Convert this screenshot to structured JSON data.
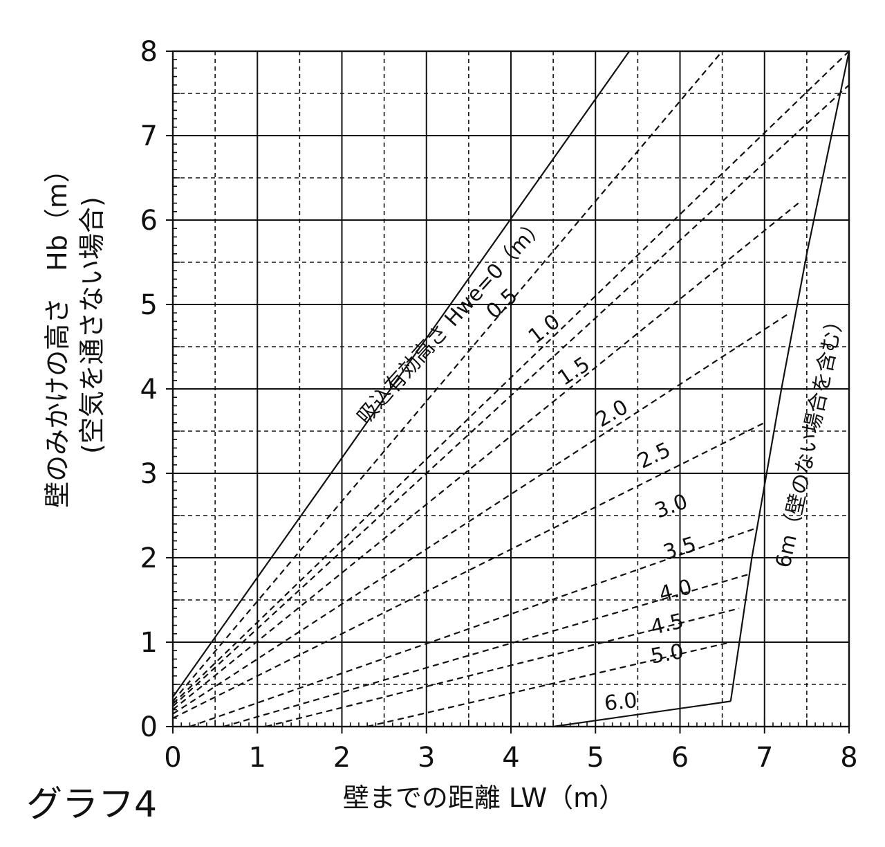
{
  "chart_data": {
    "type": "line",
    "xlabel": "壁までの距離 LW（m）",
    "ylabel": "壁のみかけの高さ　Hb（m）",
    "ylabel_sub": "(空気を通さない場合)",
    "graph_name": "グラフ4",
    "xlim": [
      0,
      8
    ],
    "ylim": [
      0,
      8
    ],
    "x_ticks": [
      "0",
      "1",
      "2",
      "3",
      "4",
      "5",
      "6",
      "7",
      "8"
    ],
    "y_ticks": [
      "0",
      "1",
      "2",
      "3",
      "4",
      "5",
      "6",
      "7",
      "8"
    ],
    "grid": "major solid every 1, minor dashed every 0.5",
    "series": [
      {
        "name": "吸込有効高さ Hwe=0（m）",
        "style": "solid",
        "points": [
          [
            0,
            0.35
          ],
          [
            5.4,
            8.0
          ]
        ]
      },
      {
        "name": "0.5",
        "style": "dashed",
        "points": [
          [
            0,
            0.3
          ],
          [
            6.5,
            8.0
          ]
        ]
      },
      {
        "name": "1.0",
        "style": "dashed",
        "points": [
          [
            0,
            0.27
          ],
          [
            8.0,
            8.0
          ]
        ]
      },
      {
        "name": "1.5",
        "style": "dashed",
        "points": [
          [
            0,
            0.24
          ],
          [
            8.0,
            7.6
          ]
        ]
      },
      {
        "name": "2.0",
        "style": "dashed",
        "points": [
          [
            0,
            0.2
          ],
          [
            7.4,
            6.2
          ]
        ]
      },
      {
        "name": "2.5",
        "style": "dashed",
        "points": [
          [
            0,
            0.15
          ],
          [
            7.3,
            4.9
          ]
        ]
      },
      {
        "name": "3.0",
        "style": "dashed",
        "points": [
          [
            0,
            0.1
          ],
          [
            7.0,
            3.6
          ]
        ]
      },
      {
        "name": "3.5",
        "style": "dashed",
        "points": [
          [
            0.2,
            0.0
          ],
          [
            6.9,
            2.35
          ]
        ]
      },
      {
        "name": "4.0",
        "style": "dashed",
        "points": [
          [
            0.6,
            0.0
          ],
          [
            6.8,
            1.8
          ]
        ]
      },
      {
        "name": "4.5",
        "style": "dashed",
        "points": [
          [
            1.1,
            0.0
          ],
          [
            6.7,
            1.4
          ]
        ]
      },
      {
        "name": "5.0",
        "style": "dashed",
        "points": [
          [
            2.3,
            0.0
          ],
          [
            6.6,
            1.0
          ]
        ]
      },
      {
        "name": "6.0",
        "style": "solid",
        "points": [
          [
            4.5,
            0.0
          ],
          [
            6.6,
            0.3
          ]
        ]
      },
      {
        "name": "6m（壁のない場合を含む）",
        "style": "solid",
        "points": [
          [
            6.6,
            0.3
          ],
          [
            6.85,
            2.0
          ],
          [
            7.2,
            4.0
          ],
          [
            7.5,
            5.6
          ],
          [
            8.0,
            8.0
          ]
        ]
      }
    ],
    "labels": [
      {
        "text": "吸込有効高さ Hwe=0（m）",
        "x": 3.3,
        "y": 4.8,
        "angle": -48
      },
      {
        "text": "0.5",
        "x": 3.9,
        "y": 5.0,
        "angle": -42
      },
      {
        "text": "1.0",
        "x": 4.4,
        "y": 4.7,
        "angle": -38
      },
      {
        "text": "1.5",
        "x": 4.75,
        "y": 4.2,
        "angle": -34
      },
      {
        "text": "2.0",
        "x": 5.2,
        "y": 3.7,
        "angle": -30
      },
      {
        "text": "2.5",
        "x": 5.7,
        "y": 3.2,
        "angle": -25
      },
      {
        "text": "3.0",
        "x": 5.9,
        "y": 2.6,
        "angle": -20
      },
      {
        "text": "3.5",
        "x": 6.0,
        "y": 2.1,
        "angle": -17
      },
      {
        "text": "4.0",
        "x": 5.95,
        "y": 1.6,
        "angle": -15
      },
      {
        "text": "4.5",
        "x": 5.85,
        "y": 1.2,
        "angle": -13
      },
      {
        "text": "5.0",
        "x": 5.85,
        "y": 0.85,
        "angle": -10
      },
      {
        "text": "6.0",
        "x": 5.3,
        "y": 0.28,
        "angle": -6
      },
      {
        "text": "6m（壁のない場合を含む）",
        "x": 7.55,
        "y": 3.4,
        "angle": -78
      }
    ]
  }
}
